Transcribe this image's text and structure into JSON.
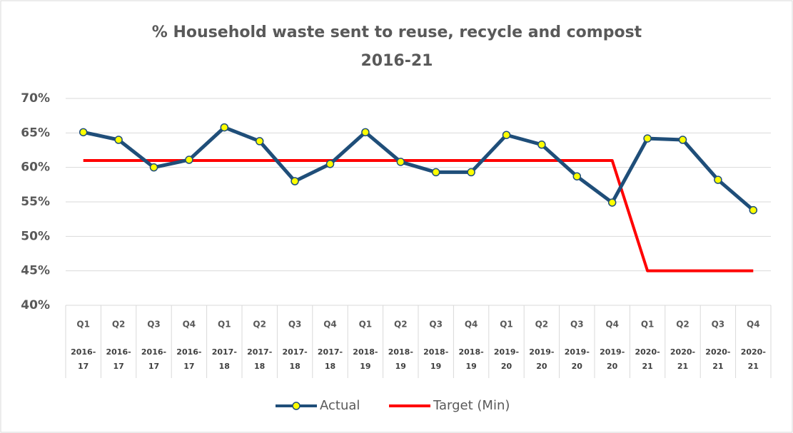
{
  "chart_data": {
    "type": "line",
    "title": [
      "% Household waste sent to reuse, recycle and compost",
      "2016-21"
    ],
    "categories": [
      "Q1",
      "Q2",
      "Q3",
      "Q4",
      "Q1",
      "Q2",
      "Q3",
      "Q4",
      "Q1",
      "Q2",
      "Q3",
      "Q4",
      "Q1",
      "Q2",
      "Q3",
      "Q4",
      "Q1",
      "Q2",
      "Q3",
      "Q4"
    ],
    "category_groups": [
      "2016-17",
      "2016-17",
      "2016-17",
      "2016-17",
      "2017-18",
      "2017-18",
      "2017-18",
      "2017-18",
      "2018-19",
      "2018-19",
      "2018-19",
      "2018-19",
      "2019-20",
      "2019-20",
      "2019-20",
      "2019-20",
      "2020-21",
      "2020-21",
      "2020-21",
      "2020-21"
    ],
    "series": [
      {
        "name": "Actual",
        "color": "#1f4e79",
        "marker_color": "#ffff00",
        "values": [
          65.1,
          64.0,
          60.0,
          61.1,
          65.8,
          63.8,
          58.0,
          60.5,
          65.1,
          60.8,
          59.3,
          59.3,
          64.7,
          63.3,
          58.7,
          54.9,
          64.2,
          64.0,
          58.2,
          53.8
        ]
      },
      {
        "name": "Target (Min)",
        "color": "#ff0000",
        "values": [
          61,
          61,
          61,
          61,
          61,
          61,
          61,
          61,
          61,
          61,
          61,
          61,
          61,
          61,
          61,
          61,
          45,
          45,
          45,
          45
        ]
      }
    ],
    "ylim": [
      40,
      70
    ],
    "yticks": [
      {
        "value": 40,
        "label": "40%"
      },
      {
        "value": 45,
        "label": "45%"
      },
      {
        "value": 50,
        "label": "50%"
      },
      {
        "value": 55,
        "label": "55%"
      },
      {
        "value": 60,
        "label": "60%"
      },
      {
        "value": 65,
        "label": "65%"
      },
      {
        "value": 70,
        "label": "70%"
      }
    ],
    "grid": true,
    "legend": "bottom"
  }
}
